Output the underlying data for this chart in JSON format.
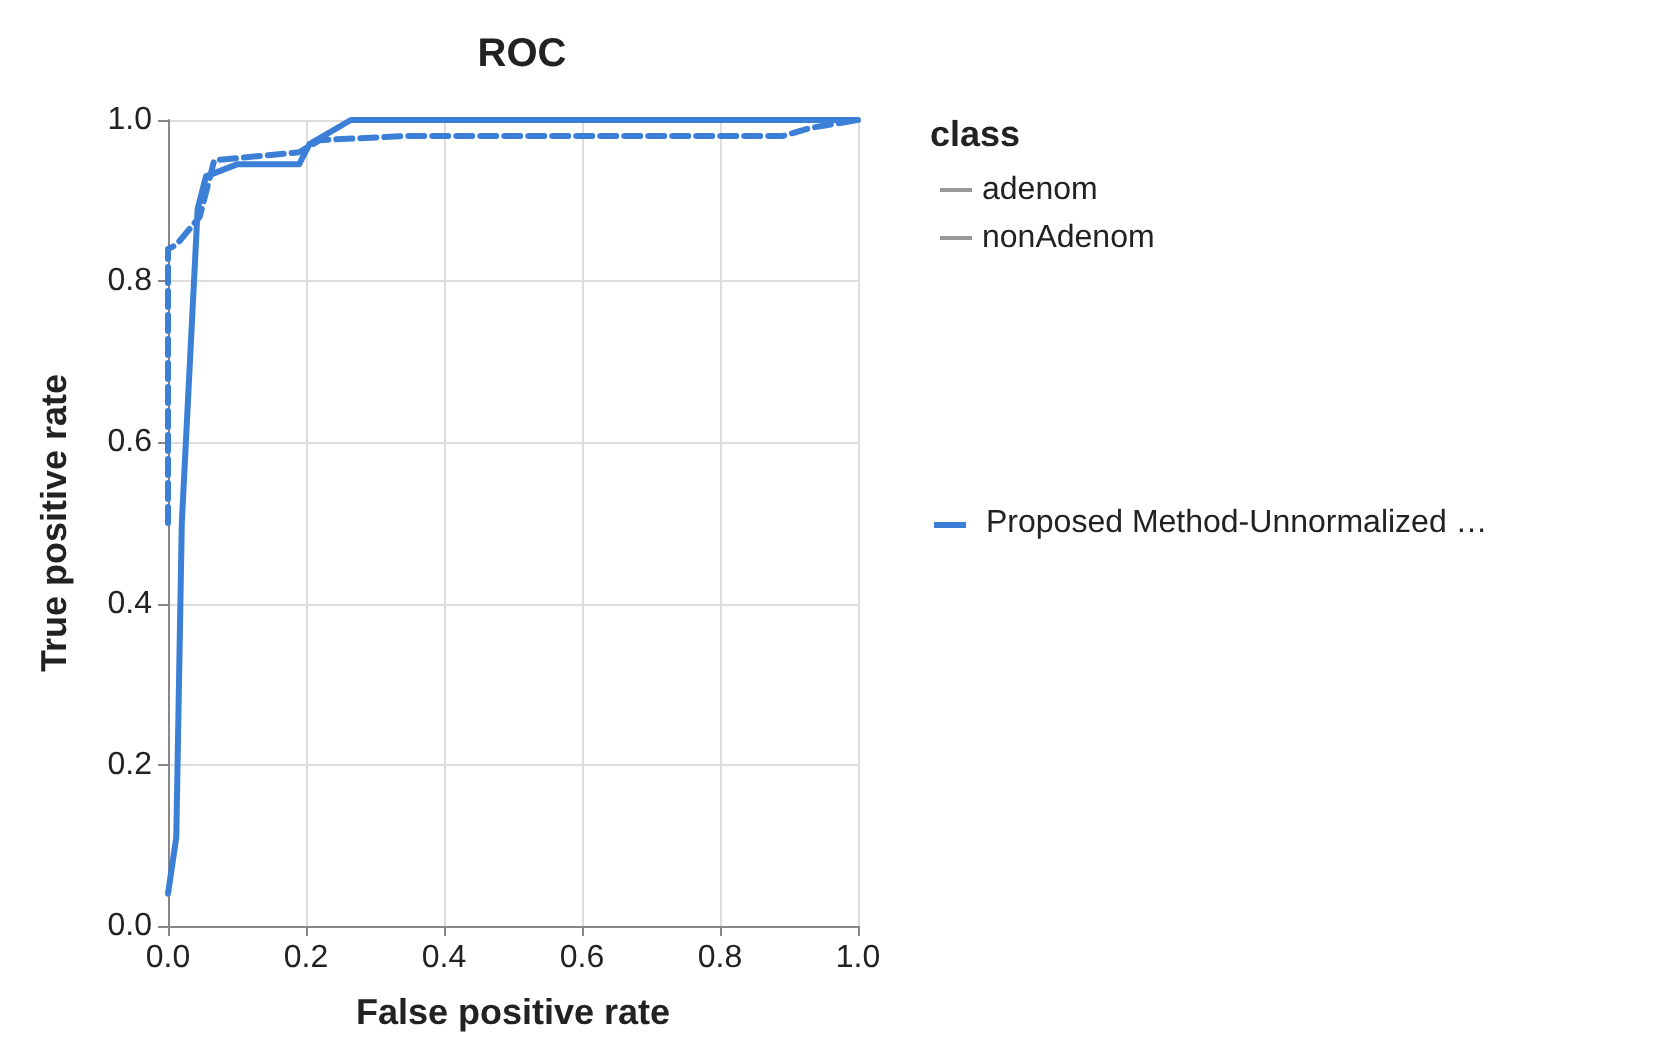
{
  "chart_data": {
    "type": "line",
    "title": "ROC",
    "xlabel": "False positive rate",
    "ylabel": "True positive rate",
    "legend_title": "class",
    "legend": "right",
    "annotations": [
      "Proposed Method-Unnormalized …"
    ],
    "xlim": [
      0,
      1
    ],
    "ylim": [
      0,
      1
    ],
    "xticks": [
      {
        "value": 0,
        "label": "0.0"
      },
      0.2,
      0.4,
      0.6,
      0.8,
      {
        "value": 1,
        "label": "1.0"
      }
    ],
    "yticks": [
      {
        "value": 0,
        "label": "0.0"
      },
      0.2,
      0.4,
      0.6,
      0.8,
      {
        "value": 1,
        "label": "1.0"
      }
    ],
    "grid": true,
    "marker": "none",
    "series": [
      {
        "name": "adenom",
        "color": "#3b7fd6",
        "line_style": "solid",
        "x": [
          0,
          0.012,
          0.02,
          0.043,
          0.055,
          0.1,
          0.19,
          0.205,
          0.265,
          1
        ],
        "values": [
          0.04,
          0.11,
          0.5,
          0.89,
          0.93,
          0.945,
          0.945,
          0.97,
          1,
          1
        ]
      },
      {
        "name": "nonAdenom",
        "color": "#3b7fd6",
        "line_style": "dashed",
        "x": [
          0,
          0,
          0.012,
          0.046,
          0.067,
          0.19,
          0.22,
          0.34,
          0.89,
          0.93,
          1
        ],
        "values": [
          0.5,
          0.84,
          0.845,
          0.88,
          0.95,
          0.96,
          0.975,
          0.98,
          0.98,
          0.99,
          1
        ]
      }
    ]
  }
}
